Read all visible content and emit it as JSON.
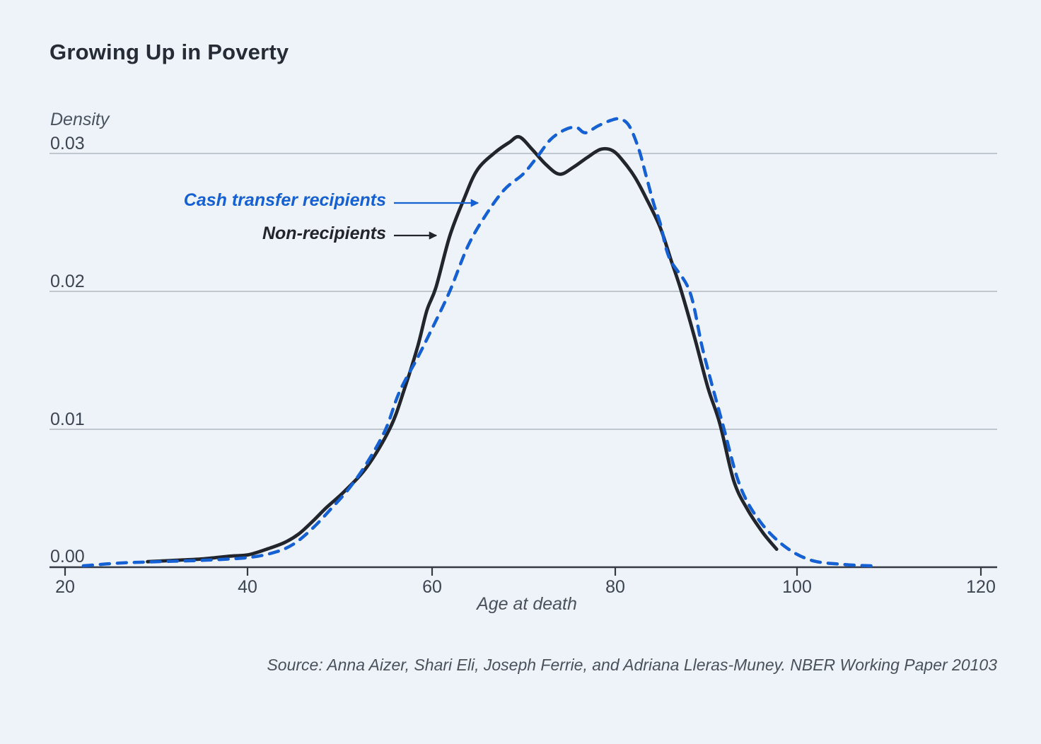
{
  "title": "Growing Up in Poverty",
  "source_note": "Source: Anna Aizer, Shari Eli, Joseph Ferrie, and Adriana Lleras-Muney. NBER Working Paper 20103",
  "colors": {
    "background": "#eef2f9",
    "accent_blue": "#1560d2",
    "curve_dark": "#22262c",
    "gridline": "#b0b7c0",
    "axis_line": "#343a43",
    "title_text": "#262c35",
    "tick_text": "#3d4550",
    "muted_text": "#4a5360"
  },
  "chart_data": {
    "type": "line",
    "title": "Growing Up in Poverty",
    "xlabel": "Age at death",
    "ylabel": "Density",
    "xlim": [
      20,
      120
    ],
    "ylim": [
      0,
      0.033
    ],
    "x_ticks": [
      "20",
      "40",
      "60",
      "80",
      "100",
      "120"
    ],
    "y_ticks": [
      "0.03",
      "0.02",
      "0.01",
      "0.00"
    ],
    "grid": "horizontal-only",
    "legend_position": "inline-annotations-with-arrows",
    "series": [
      {
        "name": "Cash transfer recipients",
        "color": "#1560d2",
        "style": "dashed",
        "points": [
          [
            22,
            0.0001
          ],
          [
            26,
            0.0003
          ],
          [
            30,
            0.0004
          ],
          [
            35,
            0.0005
          ],
          [
            40,
            0.0007
          ],
          [
            43,
            0.0011
          ],
          [
            45,
            0.0017
          ],
          [
            47,
            0.0028
          ],
          [
            49,
            0.0042
          ],
          [
            51,
            0.0057
          ],
          [
            53,
            0.0076
          ],
          [
            55,
            0.01
          ],
          [
            56.5,
            0.0127
          ],
          [
            58.5,
            0.0152
          ],
          [
            60,
            0.0172
          ],
          [
            62,
            0.02
          ],
          [
            64,
            0.0233
          ],
          [
            66,
            0.0256
          ],
          [
            68,
            0.0274
          ],
          [
            70,
            0.0285
          ],
          [
            71.5,
            0.0297
          ],
          [
            73,
            0.031
          ],
          [
            74.5,
            0.0317
          ],
          [
            75.8,
            0.0319
          ],
          [
            76.8,
            0.0315
          ],
          [
            78.2,
            0.032
          ],
          [
            79.6,
            0.0324
          ],
          [
            80.6,
            0.0325
          ],
          [
            81.6,
            0.032
          ],
          [
            82.6,
            0.0304
          ],
          [
            83.4,
            0.0285
          ],
          [
            84.3,
            0.0263
          ],
          [
            85,
            0.0249
          ],
          [
            86,
            0.0224
          ],
          [
            88.2,
            0.02
          ],
          [
            89.7,
            0.0156
          ],
          [
            91.8,
            0.0104
          ],
          [
            93.7,
            0.0059
          ],
          [
            95.9,
            0.0033
          ],
          [
            98.6,
            0.0015
          ],
          [
            101.5,
            0.0005
          ],
          [
            105,
            0.0002
          ],
          [
            108,
            0.0001
          ]
        ]
      },
      {
        "name": "Non-recipients",
        "color": "#22262c",
        "style": "solid",
        "points": [
          [
            29,
            0.0004
          ],
          [
            32,
            0.0005
          ],
          [
            35,
            0.0006
          ],
          [
            38,
            0.0008
          ],
          [
            40,
            0.0009
          ],
          [
            42,
            0.0013
          ],
          [
            44,
            0.0018
          ],
          [
            45.5,
            0.0024
          ],
          [
            47,
            0.0033
          ],
          [
            48.5,
            0.0043
          ],
          [
            50.5,
            0.0055
          ],
          [
            53,
            0.0073
          ],
          [
            55.5,
            0.0101
          ],
          [
            57,
            0.0128
          ],
          [
            58.5,
            0.016
          ],
          [
            59.5,
            0.0186
          ],
          [
            60.5,
            0.0203
          ],
          [
            62,
            0.024
          ],
          [
            63.5,
            0.0266
          ],
          [
            65,
            0.0288
          ],
          [
            67,
            0.0301
          ],
          [
            68.5,
            0.0308
          ],
          [
            69.6,
            0.0312
          ],
          [
            71,
            0.0303
          ],
          [
            72.5,
            0.0292
          ],
          [
            74,
            0.0285
          ],
          [
            75.5,
            0.029
          ],
          [
            77,
            0.0297
          ],
          [
            78.5,
            0.0303
          ],
          [
            79.8,
            0.0302
          ],
          [
            81,
            0.0294
          ],
          [
            82.2,
            0.0283
          ],
          [
            83.5,
            0.0267
          ],
          [
            85,
            0.0246
          ],
          [
            86.2,
            0.0222
          ],
          [
            87.3,
            0.02
          ],
          [
            88.8,
            0.0165
          ],
          [
            90.2,
            0.013
          ],
          [
            91.5,
            0.0104
          ],
          [
            93,
            0.0063
          ],
          [
            94.5,
            0.0042
          ],
          [
            96.2,
            0.0025
          ],
          [
            97.7,
            0.0013
          ]
        ]
      }
    ]
  }
}
